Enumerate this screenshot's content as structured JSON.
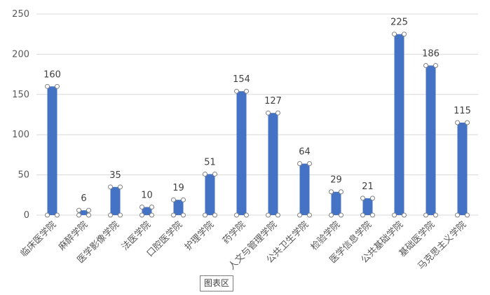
{
  "chart_data": {
    "type": "bar",
    "categories": [
      "临床医学院",
      "麻醉学院",
      "医学影像学院",
      "法医学院",
      "口腔医学院",
      "护理学院",
      "药学院",
      "人文与管理学院",
      "公共卫生学院",
      "检验学院",
      "医学信息学院",
      "公共基础学院",
      "基础医学院",
      "马克思主义学院"
    ],
    "values": [
      160,
      6,
      35,
      10,
      19,
      51,
      154,
      127,
      64,
      29,
      21,
      225,
      186,
      115
    ],
    "yticks": [
      "0",
      "50",
      "100",
      "150",
      "200",
      "250"
    ],
    "ylim": [
      0,
      250
    ],
    "grid": true,
    "legend": "none",
    "bar_color": "#4472C4",
    "grid_color": "#d9d9d9"
  },
  "tooltip": {
    "label": "图表区"
  }
}
